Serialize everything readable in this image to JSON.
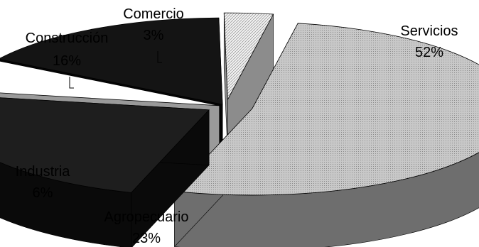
{
  "chart_data": {
    "type": "pie",
    "style": "3d-exploded",
    "categories": [
      "Servicios",
      "Agropecuario",
      "Industria",
      "Construcción",
      "Comercio"
    ],
    "values": [
      52,
      23,
      6,
      16,
      3
    ],
    "value_labels": [
      "52%",
      "23%",
      "6%",
      "16%",
      "3%"
    ],
    "colors": [
      "#c8c8c8",
      "#1e1e1e",
      "#ffffff",
      "#141414",
      "#f0f0f0"
    ],
    "side_colors": [
      "#6e6e6e",
      "#0a0a0a",
      "#9a9a9a",
      "#050505",
      "#8c8c8c"
    ],
    "patterns": [
      "dotted",
      "solid",
      "dotted",
      "solid",
      "hatched"
    ],
    "legend": "none",
    "grid": false
  }
}
